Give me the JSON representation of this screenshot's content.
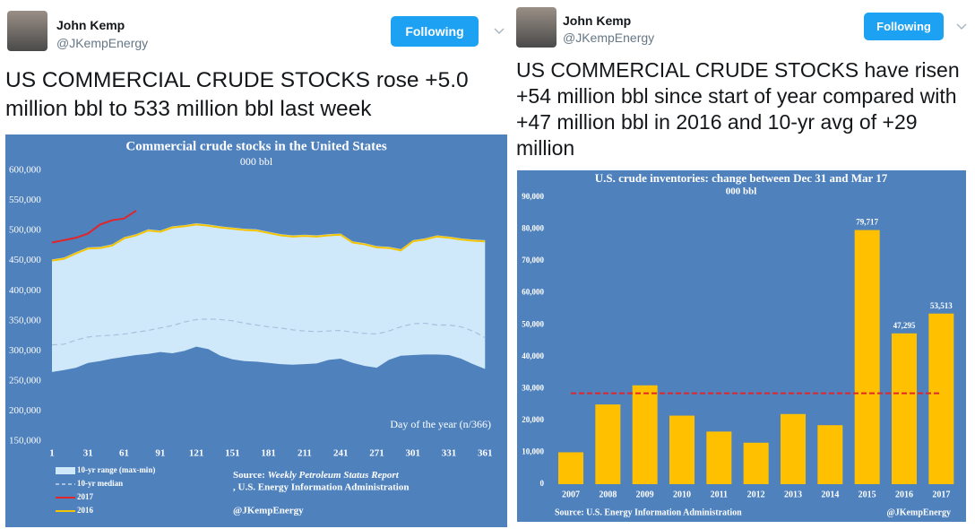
{
  "tweets": [
    {
      "name": "John Kemp",
      "handle": "@JKempEnergy",
      "button": "Following",
      "text": "US COMMERCIAL CRUDE STOCKS rose +5.0 million bbl to 533 million bbl last week"
    },
    {
      "name": "John Kemp",
      "handle": "@JKempEnergy",
      "button": "Following",
      "text": "US COMMERCIAL CRUDE STOCKS have risen +54 million bbl since start of year compared with +47 million bbl in 2016 and 10-yr avg of +29 million"
    }
  ],
  "chart_data": [
    {
      "type": "line",
      "title": "Commercial crude stocks in the United States",
      "subtitle": "000 bbl",
      "x_label": "Day of the year (n/366)",
      "x": [
        1,
        11,
        21,
        31,
        41,
        51,
        61,
        71,
        81,
        91,
        101,
        111,
        121,
        131,
        141,
        151,
        161,
        171,
        181,
        191,
        201,
        211,
        221,
        231,
        241,
        251,
        261,
        271,
        281,
        291,
        301,
        311,
        321,
        331,
        341,
        351,
        361
      ],
      "xlim": [
        1,
        366
      ],
      "xticks": [
        1,
        31,
        61,
        91,
        121,
        151,
        181,
        211,
        241,
        271,
        301,
        331,
        361
      ],
      "ylim": [
        150000,
        600000
      ],
      "yticks": [
        {
          "value": 150000,
          "label": "150,000"
        },
        {
          "value": 200000,
          "label": "200,000"
        },
        {
          "value": 250000,
          "label": "250,000"
        },
        {
          "value": 300000,
          "label": "300,000"
        },
        {
          "value": 350000,
          "label": "350,000"
        },
        {
          "value": 400000,
          "label": "400,000"
        },
        {
          "value": 450000,
          "label": "450,000"
        },
        {
          "value": 500000,
          "label": "500,000"
        },
        {
          "value": 550000,
          "label": "550,000"
        },
        {
          "value": 600000,
          "label": "600,000"
        }
      ],
      "series": [
        {
          "name": "10-yr range (max-min)",
          "color": "#cfe9fb",
          "high": [
            452000,
            455000,
            464000,
            472000,
            473000,
            477000,
            489000,
            494000,
            502000,
            500000,
            507000,
            509000,
            512000,
            510000,
            507000,
            505000,
            503000,
            502000,
            498000,
            494000,
            492000,
            493000,
            492000,
            494000,
            495000,
            482000,
            479000,
            474000,
            473000,
            469000,
            484000,
            487000,
            492000,
            490000,
            487000,
            485000,
            484000
          ],
          "low": [
            265000,
            268000,
            272000,
            280000,
            283000,
            287000,
            290000,
            293000,
            295000,
            298000,
            296000,
            300000,
            307000,
            303000,
            292000,
            286000,
            283000,
            282000,
            280000,
            278000,
            277000,
            278000,
            279000,
            285000,
            287000,
            280000,
            275000,
            272000,
            285000,
            292000,
            293000,
            294000,
            294000,
            293000,
            287000,
            278000,
            270000
          ]
        },
        {
          "name": "10-yr median",
          "color": "#a9c0dc",
          "values": [
            310000,
            311000,
            318000,
            323000,
            325000,
            326000,
            328000,
            331000,
            334000,
            338000,
            342000,
            348000,
            352000,
            353000,
            352000,
            350000,
            346000,
            343000,
            340000,
            338000,
            335000,
            333000,
            332000,
            333000,
            334000,
            331000,
            329000,
            328000,
            333000,
            340000,
            345000,
            346000,
            343000,
            343000,
            340000,
            333000,
            322000
          ]
        },
        {
          "name": "2017",
          "color": "#e0262a",
          "values": [
            480000,
            484000,
            488000,
            495000,
            510000,
            517000,
            520000,
            533000,
            null,
            null,
            null,
            null,
            null,
            null,
            null,
            null,
            null,
            null,
            null,
            null,
            null,
            null,
            null,
            null,
            null,
            null,
            null,
            null,
            null,
            null,
            null,
            null,
            null,
            null,
            null,
            null,
            null
          ]
        },
        {
          "name": "2016",
          "color": "#f5c400",
          "values": [
            450000,
            453000,
            462000,
            470000,
            471000,
            475000,
            487000,
            492000,
            500000,
            498000,
            505000,
            507000,
            510000,
            508000,
            505000,
            503000,
            501000,
            500000,
            496000,
            492000,
            490000,
            491000,
            490000,
            492000,
            493000,
            480000,
            477000,
            472000,
            471000,
            467000,
            482000,
            485000,
            490000,
            488000,
            485000,
            483000,
            482000
          ]
        }
      ],
      "source_prefix": "Source:",
      "source_title": "Weekly Petroleum Status Report",
      "source_suffix": ", U.S. Energy Information Administration",
      "credit": "@JKempEnergy"
    },
    {
      "type": "bar",
      "title": "U.S. crude inventories: change between Dec 31 and Mar 17",
      "subtitle": "000 bbl",
      "categories": [
        "2007",
        "2008",
        "2009",
        "2010",
        "2011",
        "2012",
        "2013",
        "2014",
        "2015",
        "2016",
        "2017"
      ],
      "values": [
        10000,
        25000,
        31000,
        21500,
        16500,
        13000,
        22000,
        18500,
        79717,
        47295,
        53513
      ],
      "value_labels": [
        null,
        null,
        null,
        null,
        null,
        null,
        null,
        null,
        "79,717",
        "47,295",
        "53,513"
      ],
      "color": "#ffc000",
      "average": 28500,
      "average_color": "#e0262a",
      "ylim": [
        0,
        90000
      ],
      "yticks": [
        0,
        {
          "value": 10000,
          "label": "10,000"
        },
        {
          "value": 20000,
          "label": "20,000"
        },
        {
          "value": 30000,
          "label": "30,000"
        },
        {
          "value": 40000,
          "label": "40,000"
        },
        {
          "value": 50000,
          "label": "50,000"
        },
        {
          "value": 60000,
          "label": "60,000"
        },
        {
          "value": 70000,
          "label": "70,000"
        },
        {
          "value": 80000,
          "label": "80,000"
        },
        {
          "value": 90000,
          "label": "90,000"
        }
      ],
      "source": "Source: U.S. Energy Information Administration",
      "credit": "@JKempEnergy"
    }
  ]
}
